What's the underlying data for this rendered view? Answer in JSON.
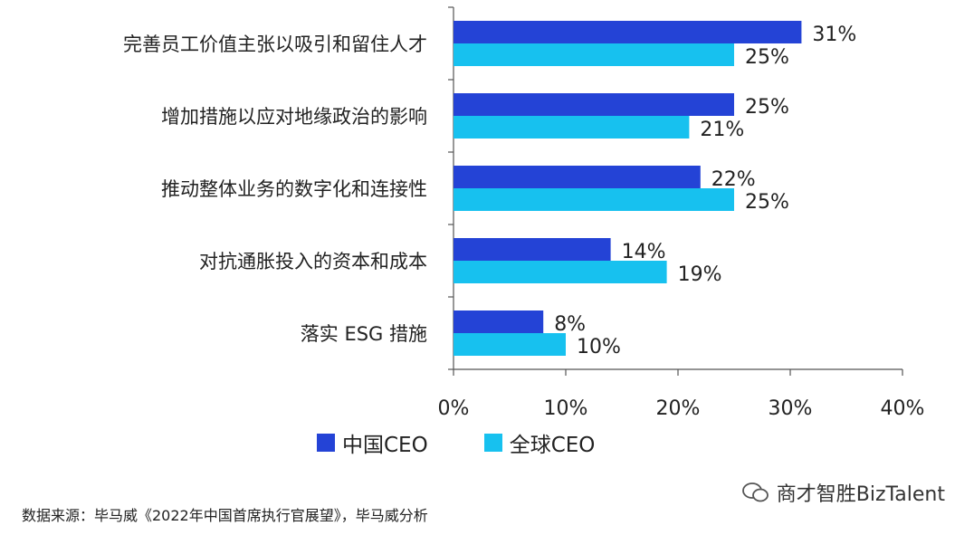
{
  "chart_data": {
    "type": "bar",
    "orientation": "horizontal",
    "categories": [
      "完善员工价值主张以吸引和留住人才",
      "增加措施以应对地缘政治的影响",
      "推动整体业务的数字化和连接性",
      "对抗通胀投入的资本和成本",
      "落实 ESG 措施"
    ],
    "series": [
      {
        "name": "中国CEO",
        "color": "#2443d6",
        "values": [
          31,
          25,
          22,
          14,
          8
        ],
        "labels": [
          "31%",
          "25%",
          "22%",
          "14%",
          "8%"
        ]
      },
      {
        "name": "全球CEO",
        "color": "#17c1ef",
        "values": [
          25,
          21,
          25,
          19,
          10
        ],
        "labels": [
          "25%",
          "21%",
          "25%",
          "19%",
          "10%"
        ]
      }
    ],
    "xlim": [
      0,
      40
    ],
    "xticks": [
      0,
      10,
      20,
      30,
      40
    ],
    "xtick_labels": [
      "0%",
      "10%",
      "20%",
      "30%",
      "40%"
    ],
    "legend_position": "bottom",
    "grid": false
  },
  "source_text": "数据来源：毕马威《2022年中国首席执行官展望》，毕马威分析",
  "watermark_text": "商才智胜BizTalent"
}
